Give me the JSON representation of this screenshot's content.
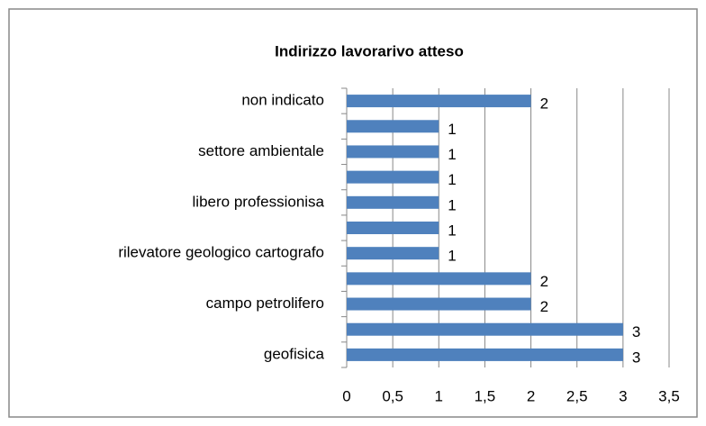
{
  "chart_data": {
    "type": "bar",
    "orientation": "horizontal",
    "title": "Indirizzo lavorarivo atteso",
    "categories": [
      "geofisica",
      null,
      "campo petrolifero",
      null,
      "rilevatore geologico cartografo",
      null,
      "libero professionisa",
      null,
      "settore ambientale",
      null,
      "non indicato"
    ],
    "values": [
      3,
      3,
      2,
      2,
      1,
      1,
      1,
      1,
      1,
      1,
      2
    ],
    "color": "#4f81bd",
    "xlim": [
      0,
      3.5
    ],
    "xticks": [
      0,
      {
        "value": 0.5,
        "label": "0,5"
      },
      1,
      {
        "value": 1.5,
        "label": "1,5"
      },
      2,
      {
        "value": 2.5,
        "label": "2,5"
      },
      3,
      {
        "value": 3.5,
        "label": "3,5"
      }
    ],
    "grid": true
  }
}
